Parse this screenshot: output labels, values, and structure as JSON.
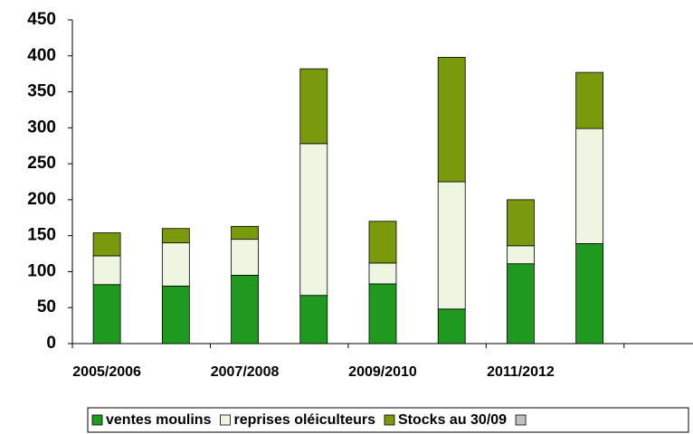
{
  "chart_data": {
    "type": "stacked_bar",
    "categories": [
      "2005/2006",
      null,
      "2007/2008",
      null,
      "2009/2010",
      null,
      "2011/2012",
      null,
      null
    ],
    "series": [
      {
        "name": "ventes moulins",
        "color": "#1f9a1f",
        "values": [
          82,
          80,
          95,
          67,
          83,
          48,
          111,
          139,
          null
        ]
      },
      {
        "name": "reprises oléiculteurs",
        "color": "#eef6e2",
        "values": [
          40,
          60,
          50,
          211,
          29,
          177,
          25,
          160,
          null
        ]
      },
      {
        "name": "Stocks au 30/09",
        "color": "#7a9a0e",
        "values": [
          32,
          20,
          18,
          104,
          58,
          173,
          64,
          78,
          null
        ]
      }
    ],
    "ylim": [
      0,
      450
    ],
    "yticks": [
      0,
      50,
      100,
      150,
      200,
      250,
      300,
      350,
      400,
      450
    ],
    "grid": false,
    "legend": "bottom"
  }
}
